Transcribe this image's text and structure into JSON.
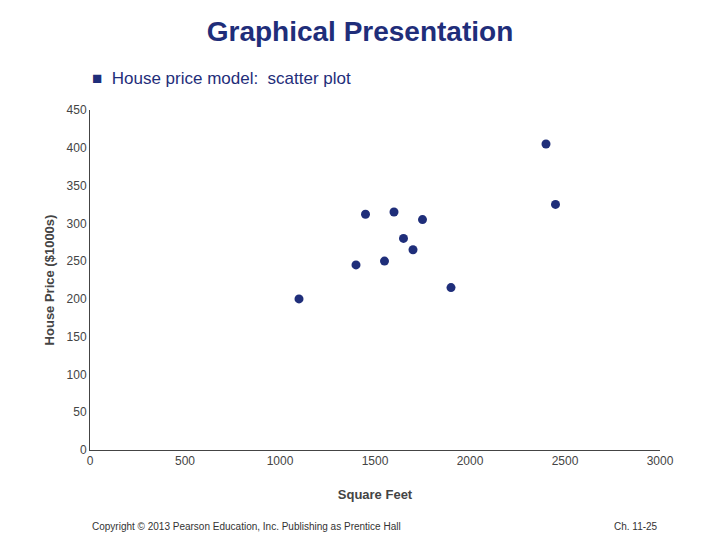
{
  "chart_data": {
    "type": "scatter",
    "title": "Graphical Presentation",
    "subtitle": "■  House price model:  scatter plot",
    "xlabel": "Square Feet",
    "ylabel": "House Price ($1000s)",
    "x": [
      1100,
      1400,
      1450,
      1550,
      1600,
      1650,
      1700,
      1750,
      1900,
      2400,
      2450
    ],
    "values": [
      200,
      245,
      312,
      250,
      315,
      280,
      265,
      305,
      215,
      405,
      325
    ],
    "color": "#1F2E7A",
    "xlim": [
      0,
      3000
    ],
    "ylim": [
      0,
      450
    ],
    "xticks": [
      0,
      500,
      1000,
      1500,
      2000,
      2500,
      3000
    ],
    "yticks": [
      0,
      50,
      100,
      150,
      200,
      250,
      300,
      350,
      400,
      450
    ],
    "grid": false,
    "annotations": [
      "Copyright © 2013 Pearson Education, Inc. Publishing as Prentice Hall",
      "Ch. 11-25"
    ]
  }
}
